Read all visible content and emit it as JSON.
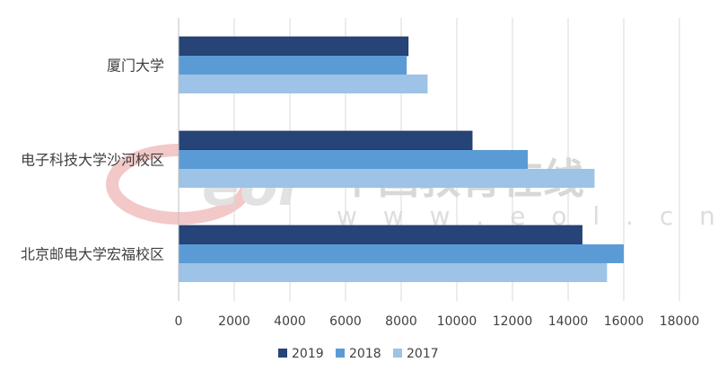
{
  "chart_data": {
    "type": "bar",
    "orientation": "horizontal",
    "title": "",
    "xlabel": "",
    "ylabel": "",
    "categories": [
      "北京邮电大学宏福校区",
      "电子科技大学沙河校区",
      "厦门大学"
    ],
    "series": [
      {
        "name": "2019",
        "color": "#264478",
        "values": [
          14500,
          10550,
          8250
        ]
      },
      {
        "name": "2018",
        "color": "#5b9bd5",
        "values": [
          16000,
          12550,
          8200
        ]
      },
      {
        "name": "2017",
        "color": "#9dc3e6",
        "values": [
          15400,
          14950,
          8950
        ]
      }
    ],
    "xlim": [
      0,
      18000
    ],
    "xticks": [
      "0",
      "2000",
      "4000",
      "6000",
      "8000",
      "10000",
      "12000",
      "14000",
      "16000",
      "18000"
    ],
    "grid": "vertical",
    "legend_position": "bottom"
  },
  "watermark": {
    "cn_text": "中国教育在线",
    "url_text": "w w w . e o l . c n",
    "logo_text": "eol"
  }
}
